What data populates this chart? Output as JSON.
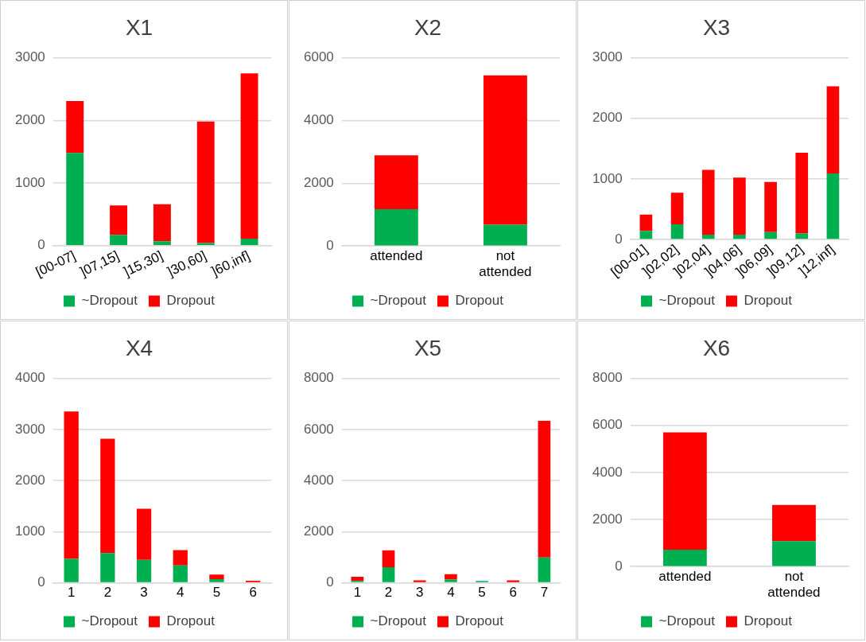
{
  "chart_data": [
    {
      "type": "bar",
      "title": "X1",
      "categories": [
        "[00-07]",
        "]07,15]",
        "]15,30]",
        "]30,60]",
        "]60,inf]"
      ],
      "stacked": true,
      "ylim": [
        0,
        3000
      ],
      "yticks": [
        0,
        1000,
        2000,
        3000
      ],
      "grid": "y",
      "legend": "bottom",
      "series": [
        {
          "name": "~Dropout",
          "color": "#00b050",
          "values": [
            1480,
            170,
            70,
            40,
            110
          ]
        },
        {
          "name": "Dropout",
          "color": "#ff0000",
          "values": [
            830,
            470,
            590,
            1940,
            2640
          ]
        }
      ]
    },
    {
      "type": "bar",
      "title": "X2",
      "categories": [
        "attended",
        "not attended"
      ],
      "stacked": true,
      "ylim": [
        0,
        6000
      ],
      "yticks": [
        0,
        2000,
        4000,
        6000
      ],
      "grid": "y",
      "legend": "bottom",
      "series": [
        {
          "name": "~Dropout",
          "color": "#00b050",
          "values": [
            1170,
            680
          ]
        },
        {
          "name": "Dropout",
          "color": "#ff0000",
          "values": [
            1720,
            4760
          ]
        }
      ]
    },
    {
      "type": "bar",
      "title": "X3",
      "categories": [
        "[00-01]",
        "]02,02]",
        "]02,04]",
        "]04,06]",
        "]06,09]",
        "]09,12]",
        "]12,inf]"
      ],
      "stacked": true,
      "ylim": [
        0,
        3000
      ],
      "yticks": [
        0,
        1000,
        2000,
        3000
      ],
      "grid": "y",
      "legend": "bottom",
      "series": [
        {
          "name": "~Dropout",
          "color": "#00b050",
          "values": [
            140,
            250,
            80,
            80,
            120,
            100,
            1090
          ]
        },
        {
          "name": "Dropout",
          "color": "#ff0000",
          "values": [
            270,
            520,
            1070,
            940,
            830,
            1330,
            1440
          ]
        }
      ]
    },
    {
      "type": "bar",
      "title": "X4",
      "categories": [
        "1",
        "2",
        "3",
        "4",
        "5",
        "6"
      ],
      "stacked": true,
      "ylim": [
        0,
        4000
      ],
      "yticks": [
        0,
        1000,
        2000,
        3000,
        4000
      ],
      "grid": "y",
      "legend": "bottom",
      "series": [
        {
          "name": "~Dropout",
          "color": "#00b050",
          "values": [
            470,
            580,
            450,
            340,
            70,
            null
          ]
        },
        {
          "name": "Dropout",
          "color": "#ff0000",
          "values": [
            2880,
            2240,
            1000,
            300,
            90,
            40
          ]
        }
      ]
    },
    {
      "type": "bar",
      "title": "X5",
      "categories": [
        "1",
        "2",
        "3",
        "4",
        "5",
        "6",
        "7"
      ],
      "stacked": true,
      "ylim": [
        0,
        8000
      ],
      "yticks": [
        0,
        2000,
        4000,
        6000,
        8000
      ],
      "grid": "y",
      "legend": "bottom",
      "series": [
        {
          "name": "~Dropout",
          "color": "#00b050",
          "values": [
            70,
            610,
            null,
            130,
            70,
            null,
            990
          ]
        },
        {
          "name": "Dropout",
          "color": "#ff0000",
          "values": [
            170,
            660,
            100,
            210,
            0,
            100,
            5350
          ]
        }
      ]
    },
    {
      "type": "bar",
      "title": "X6",
      "categories": [
        "attended",
        "not attended"
      ],
      "stacked": true,
      "ylim": [
        0,
        8000
      ],
      "yticks": [
        0,
        2000,
        4000,
        6000,
        8000
      ],
      "grid": "y",
      "legend": "bottom",
      "series": [
        {
          "name": "~Dropout",
          "color": "#00b050",
          "values": [
            720,
            1080
          ]
        },
        {
          "name": "Dropout",
          "color": "#ff0000",
          "values": [
            4980,
            1540
          ]
        }
      ]
    }
  ]
}
